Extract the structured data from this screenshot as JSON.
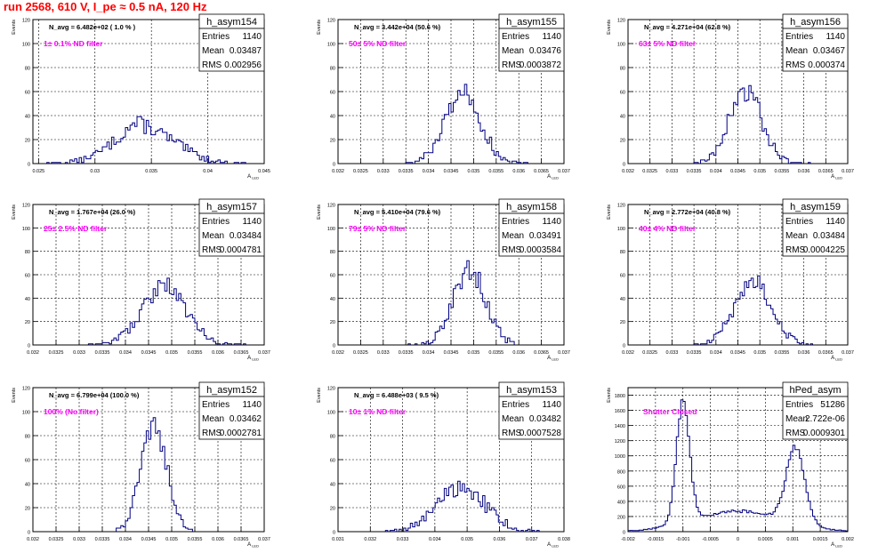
{
  "page_title": "run 2568,   610 V, I_pe ≈ 0.5 nA, 120 Hz",
  "colors": {
    "hist": "#000080",
    "annotation": "#ff00ff",
    "title": "#ff0000",
    "grid": "#000000"
  },
  "stats_labels": {
    "entries": "Entries",
    "mean": "Mean",
    "rms": "RMS"
  },
  "chart_data": [
    {
      "type": "histogram",
      "name": "h_asym154",
      "nav": "N_avg = 6.482e+02 ( 1.0 % )",
      "annotation": "1± 0.1% ND filter",
      "entries": "1140",
      "mean": "0.03487",
      "rms": "0.002956",
      "ylabel": "Events",
      "xlabel": "A",
      "xlim": [
        0.0245,
        0.045
      ],
      "ylim": [
        0,
        120
      ],
      "yticks": [
        "0",
        "20",
        "40",
        "60",
        "80",
        "100",
        "120"
      ],
      "xticks": [
        [
          0.025,
          "0.025"
        ],
        [
          0.03,
          "0.03"
        ],
        [
          0.035,
          "0.035"
        ],
        [
          0.04,
          "0.04"
        ],
        [
          0.045,
          "0.045"
        ]
      ],
      "peaks": [
        [
          0.0345,
          0.0028,
          27
        ],
        [
          0.0335,
          0.0012,
          7
        ]
      ]
    },
    {
      "type": "histogram",
      "name": "h_asym155",
      "nav": "N_avg = 3.442e+04 (50.6 %)",
      "annotation": "50± 5% ND filter",
      "entries": "1140",
      "mean": "0.03476",
      "rms": "0.0003872",
      "ylabel": "Events",
      "xlabel": "A",
      "xlim": [
        0.032,
        0.037
      ],
      "ylim": [
        0,
        120
      ],
      "yticks": [
        "0",
        "20",
        "40",
        "60",
        "80",
        "100",
        "120"
      ],
      "xticks": [
        [
          0.032,
          "0.032"
        ],
        [
          0.0325,
          "0.0325"
        ],
        [
          0.033,
          "0.033"
        ],
        [
          0.0335,
          "0.0335"
        ],
        [
          0.034,
          "0.034"
        ],
        [
          0.0345,
          "0.0345"
        ],
        [
          0.035,
          "0.035"
        ],
        [
          0.0355,
          "0.0355"
        ],
        [
          0.036,
          "0.036"
        ],
        [
          0.0365,
          "0.0365"
        ],
        [
          0.037,
          "0.037"
        ]
      ],
      "peaks": [
        [
          0.03476,
          0.00039,
          60
        ]
      ]
    },
    {
      "type": "histogram",
      "name": "h_asym156",
      "nav": "N_avg = 4.271e+04 (62.8 %)",
      "annotation": "63± 5% ND filter",
      "entries": "1140",
      "mean": "0.03467",
      "rms": "0.000374",
      "ylabel": "Events",
      "xlabel": "A",
      "xlim": [
        0.032,
        0.037
      ],
      "ylim": [
        0,
        120
      ],
      "yticks": [
        "0",
        "20",
        "40",
        "60",
        "80",
        "100",
        "120"
      ],
      "xticks": [
        [
          0.032,
          "0.032"
        ],
        [
          0.0325,
          "0.0325"
        ],
        [
          0.033,
          "0.033"
        ],
        [
          0.0335,
          "0.0335"
        ],
        [
          0.034,
          "0.034"
        ],
        [
          0.0345,
          "0.0345"
        ],
        [
          0.035,
          "0.035"
        ],
        [
          0.0355,
          "0.0355"
        ],
        [
          0.036,
          "0.036"
        ],
        [
          0.0365,
          "0.0365"
        ],
        [
          0.037,
          "0.037"
        ]
      ],
      "peaks": [
        [
          0.03467,
          0.000374,
          61
        ]
      ]
    },
    {
      "type": "histogram",
      "name": "h_asym157",
      "nav": "N_avg = 1.767e+04 (26.0 %)",
      "annotation": "25± 2.5% ND filter",
      "entries": "1140",
      "mean": "0.03484",
      "rms": "0.0004781",
      "ylabel": "Events",
      "xlabel": "A",
      "xlim": [
        0.032,
        0.037
      ],
      "ylim": [
        0,
        120
      ],
      "yticks": [
        "0",
        "20",
        "40",
        "60",
        "80",
        "100",
        "120"
      ],
      "xticks": [
        [
          0.032,
          "0.032"
        ],
        [
          0.0325,
          "0.0325"
        ],
        [
          0.033,
          "0.033"
        ],
        [
          0.0335,
          "0.0335"
        ],
        [
          0.034,
          "0.034"
        ],
        [
          0.0345,
          "0.0345"
        ],
        [
          0.035,
          "0.035"
        ],
        [
          0.0355,
          "0.0355"
        ],
        [
          0.036,
          "0.036"
        ],
        [
          0.0365,
          "0.0365"
        ],
        [
          0.037,
          "0.037"
        ]
      ],
      "peaks": [
        [
          0.03484,
          0.00048,
          50
        ]
      ]
    },
    {
      "type": "histogram",
      "name": "h_asym158",
      "nav": "N_avg = 5.410e+04 (79.6 %)",
      "annotation": "79± 5% ND filter",
      "entries": "1140",
      "mean": "0.03491",
      "rms": "0.0003584",
      "ylabel": "Events",
      "xlabel": "A",
      "xlim": [
        0.032,
        0.037
      ],
      "ylim": [
        0,
        120
      ],
      "yticks": [
        "0",
        "20",
        "40",
        "60",
        "80",
        "100",
        "120"
      ],
      "xticks": [
        [
          0.032,
          "0.032"
        ],
        [
          0.0325,
          "0.0325"
        ],
        [
          0.033,
          "0.033"
        ],
        [
          0.0335,
          "0.0335"
        ],
        [
          0.034,
          "0.034"
        ],
        [
          0.0345,
          "0.0345"
        ],
        [
          0.035,
          "0.035"
        ],
        [
          0.0355,
          "0.0355"
        ],
        [
          0.036,
          "0.036"
        ],
        [
          0.0365,
          "0.0365"
        ],
        [
          0.037,
          "0.037"
        ]
      ],
      "peaks": [
        [
          0.03491,
          0.00036,
          64
        ]
      ]
    },
    {
      "type": "histogram",
      "name": "h_asym159",
      "nav": "N_avg = 2.772e+04 (40.8 %)",
      "annotation": "40± 4% ND filter",
      "entries": "1140",
      "mean": "0.03484",
      "rms": "0.0004225",
      "ylabel": "Events",
      "xlabel": "A",
      "xlim": [
        0.032,
        0.037
      ],
      "ylim": [
        0,
        120
      ],
      "yticks": [
        "0",
        "20",
        "40",
        "60",
        "80",
        "100",
        "120"
      ],
      "xticks": [
        [
          0.032,
          "0.032"
        ],
        [
          0.0325,
          "0.0325"
        ],
        [
          0.033,
          "0.033"
        ],
        [
          0.0335,
          "0.0335"
        ],
        [
          0.034,
          "0.034"
        ],
        [
          0.0345,
          "0.0345"
        ],
        [
          0.035,
          "0.035"
        ],
        [
          0.0355,
          "0.0355"
        ],
        [
          0.036,
          "0.036"
        ],
        [
          0.0365,
          "0.0365"
        ],
        [
          0.037,
          "0.037"
        ]
      ],
      "peaks": [
        [
          0.03484,
          0.00042,
          55
        ]
      ]
    },
    {
      "type": "histogram",
      "name": "h_asym152",
      "nav": "N_avg = 6.799e+04 (100.0 %)",
      "annotation": "100% (No filter)",
      "entries": "1140",
      "mean": "0.03462",
      "rms": "0.0002781",
      "ylabel": "Events",
      "xlabel": "A",
      "xlim": [
        0.032,
        0.037
      ],
      "ylim": [
        0,
        120
      ],
      "yticks": [
        "0",
        "20",
        "40",
        "60",
        "80",
        "100",
        "120"
      ],
      "xticks": [
        [
          0.032,
          "0.032"
        ],
        [
          0.0325,
          "0.0325"
        ],
        [
          0.033,
          "0.033"
        ],
        [
          0.0335,
          "0.0335"
        ],
        [
          0.034,
          "0.034"
        ],
        [
          0.0345,
          "0.0345"
        ],
        [
          0.035,
          "0.035"
        ],
        [
          0.0355,
          "0.0355"
        ],
        [
          0.036,
          "0.036"
        ],
        [
          0.0365,
          "0.0365"
        ],
        [
          0.037,
          "0.037"
        ]
      ],
      "peaks": [
        [
          0.03462,
          0.00028,
          88
        ]
      ]
    },
    {
      "type": "histogram",
      "name": "h_asym153",
      "nav": "N_avg = 6.488e+03 ( 9.5 %)",
      "annotation": "10± 1% ND filter",
      "entries": "1140",
      "mean": "0.03482",
      "rms": "0.0007528",
      "ylabel": "Events",
      "xlabel": "A",
      "xlim": [
        0.031,
        0.038
      ],
      "ylim": [
        0,
        120
      ],
      "yticks": [
        "0",
        "20",
        "40",
        "60",
        "80",
        "100",
        "120"
      ],
      "xticks": [
        [
          0.031,
          "0.031"
        ],
        [
          0.032,
          "0.032"
        ],
        [
          0.033,
          "0.033"
        ],
        [
          0.034,
          "0.034"
        ],
        [
          0.035,
          "0.035"
        ],
        [
          0.036,
          "0.036"
        ],
        [
          0.037,
          "0.037"
        ],
        [
          0.038,
          "0.038"
        ]
      ],
      "peaks": [
        [
          0.03482,
          0.00075,
          37
        ]
      ]
    },
    {
      "type": "histogram",
      "name": "hPed_asym",
      "nav": "",
      "annotation": "Shutter Closed",
      "entries": "51286",
      "mean": "2.722e-06",
      "rms": "0.0009301",
      "ylabel": "Events",
      "xlabel": "A",
      "xlim": [
        -0.002,
        0.002
      ],
      "ylim": [
        0,
        1900
      ],
      "yticks": [
        [
          0,
          "0"
        ],
        [
          200,
          "200"
        ],
        [
          400,
          "400"
        ],
        [
          600,
          "600"
        ],
        [
          800,
          "800"
        ],
        [
          1000,
          "1000"
        ],
        [
          1200,
          "1200"
        ],
        [
          1400,
          "1400"
        ],
        [
          1600,
          "1600"
        ],
        [
          1800,
          "1800"
        ]
      ],
      "xticks": [
        [
          -0.002,
          "-0.002"
        ],
        [
          -0.0015,
          "-0.0015"
        ],
        [
          -0.001,
          "-0.001"
        ],
        [
          -0.0005,
          "-0.0005"
        ],
        [
          0,
          "0"
        ],
        [
          0.0005,
          "0.0005"
        ],
        [
          0.001,
          "0.001"
        ],
        [
          0.0015,
          "0.0015"
        ],
        [
          0.002,
          "0.002"
        ]
      ],
      "peaks": [
        [
          -0.001,
          0.00012,
          1600
        ],
        [
          0.00105,
          0.00017,
          1000
        ],
        [
          0.0,
          0.0008,
          270
        ]
      ]
    }
  ]
}
